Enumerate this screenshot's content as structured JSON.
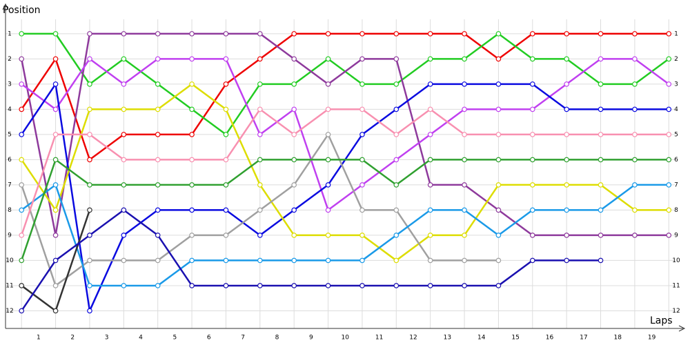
{
  "chart_data": {
    "type": "line",
    "x_label": "Laps",
    "y_label": "Position",
    "x": [
      0,
      1,
      2,
      3,
      4,
      5,
      6,
      7,
      8,
      9,
      10,
      11,
      12,
      13,
      14,
      15,
      16,
      17,
      18,
      19
    ],
    "xlim": [
      -0.47,
      19.42
    ],
    "xticks": [
      {
        "value": 0.5,
        "label": "1"
      },
      {
        "value": 1.5,
        "label": "2"
      },
      {
        "value": 2.5,
        "label": "3"
      },
      {
        "value": 3.5,
        "label": "4"
      },
      {
        "value": 4.5,
        "label": "5"
      },
      {
        "value": 5.5,
        "label": "6"
      },
      {
        "value": 6.5,
        "label": "7"
      },
      {
        "value": 7.5,
        "label": "8"
      },
      {
        "value": 8.5,
        "label": "9"
      },
      {
        "value": 9.5,
        "label": "10"
      },
      {
        "value": 10.5,
        "label": "11"
      },
      {
        "value": 11.5,
        "label": "12"
      },
      {
        "value": 12.5,
        "label": "13"
      },
      {
        "value": 13.5,
        "label": "14"
      },
      {
        "value": 14.5,
        "label": "15"
      },
      {
        "value": 15.5,
        "label": "16"
      },
      {
        "value": 16.5,
        "label": "17"
      },
      {
        "value": 17.5,
        "label": "18"
      },
      {
        "value": 18.5,
        "label": "19"
      }
    ],
    "ylim": [
      12.7,
      -0.12
    ],
    "yticks": [
      1,
      2,
      3,
      4,
      5,
      6,
      7,
      8,
      9,
      10,
      11,
      12
    ],
    "grid": true,
    "series": [
      {
        "color": "#ee0000",
        "values": [
          4,
          2,
          6,
          5,
          5,
          5,
          3,
          2,
          1,
          1,
          1,
          1,
          1,
          1,
          2,
          1,
          1,
          1,
          1,
          1
        ]
      },
      {
        "color": "#22cc22",
        "values": [
          1,
          1,
          3,
          2,
          3,
          4,
          5,
          3,
          3,
          2,
          3,
          3,
          2,
          2,
          1,
          2,
          2,
          3,
          3,
          2
        ]
      },
      {
        "color": "#8e3a9c",
        "values": [
          2,
          9,
          1,
          1,
          1,
          1,
          1,
          1,
          2,
          3,
          2,
          2,
          7,
          7,
          8,
          9,
          9,
          9,
          9,
          9
        ]
      },
      {
        "color": "#c040f0",
        "values": [
          3,
          4,
          2,
          3,
          2,
          2,
          2,
          5,
          4,
          8,
          7,
          6,
          5,
          4,
          4,
          4,
          3,
          2,
          2,
          3
        ]
      },
      {
        "color": "#0a0ae0",
        "values": [
          5,
          3,
          12,
          9,
          8,
          8,
          8,
          9,
          8,
          7,
          5,
          4,
          3,
          3,
          3,
          3,
          4,
          4,
          4,
          4
        ]
      },
      {
        "color": "#dddd00",
        "values": [
          6,
          8,
          4,
          4,
          4,
          3,
          4,
          7,
          9,
          9,
          9,
          10,
          9,
          9,
          7,
          7,
          7,
          7,
          8,
          8
        ]
      },
      {
        "color": "#a0a0a0",
        "values": [
          7,
          11,
          10,
          10,
          10,
          9,
          9,
          8,
          7,
          5,
          8,
          8,
          10,
          10,
          10,
          null,
          null,
          null,
          null,
          null
        ]
      },
      {
        "color": "#1a9ae8",
        "values": [
          8,
          7,
          11,
          11,
          11,
          10,
          10,
          10,
          10,
          10,
          10,
          9,
          8,
          8,
          9,
          8,
          8,
          8,
          7,
          7
        ]
      },
      {
        "color": "#f890b0",
        "values": [
          9,
          5,
          5,
          6,
          6,
          6,
          6,
          4,
          5,
          4,
          4,
          5,
          4,
          5,
          5,
          5,
          5,
          5,
          5,
          5
        ]
      },
      {
        "color": "#30a030",
        "values": [
          10,
          6,
          7,
          7,
          7,
          7,
          7,
          6,
          6,
          6,
          6,
          7,
          6,
          6,
          6,
          6,
          6,
          6,
          6,
          6
        ]
      },
      {
        "color": "#333333",
        "values": [
          11,
          12,
          8,
          null,
          null,
          null,
          null,
          null,
          null,
          null,
          null,
          null,
          null,
          null,
          null,
          null,
          null,
          null,
          null,
          null
        ]
      },
      {
        "color": "#1a10b0",
        "values": [
          12,
          10,
          9,
          8,
          9,
          11,
          11,
          11,
          11,
          11,
          11,
          11,
          11,
          11,
          11,
          10,
          10,
          10,
          null,
          null
        ]
      }
    ]
  }
}
